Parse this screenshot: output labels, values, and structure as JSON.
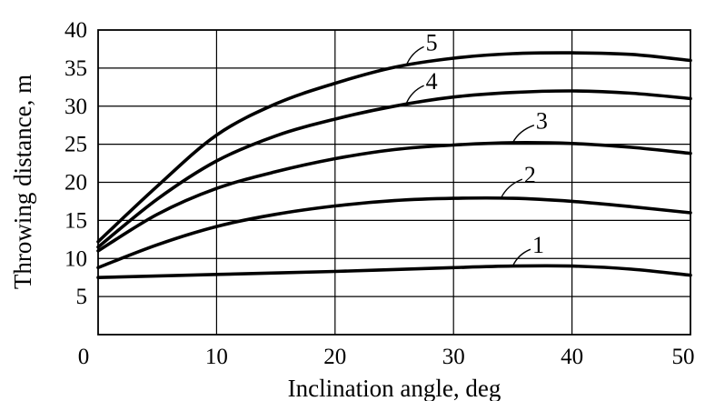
{
  "chart_data": {
    "type": "line",
    "xlabel": "Inclination angle, deg",
    "ylabel": "Throwing distance, m",
    "xlim": [
      0,
      50
    ],
    "ylim": [
      0,
      40
    ],
    "xticks": [
      "0",
      "10",
      "20",
      "30",
      "40",
      "50"
    ],
    "yticks": [
      "5",
      "10",
      "15",
      "20",
      "25",
      "30",
      "35",
      "40"
    ],
    "grid": true,
    "series": [
      {
        "name": "1",
        "x": [
          0,
          10,
          20,
          30,
          35,
          40,
          45,
          50
        ],
        "y": [
          7.5,
          7.9,
          8.3,
          8.8,
          9.0,
          9.0,
          8.6,
          7.8
        ]
      },
      {
        "name": "2",
        "x": [
          0,
          5,
          10,
          15,
          20,
          25,
          30,
          35,
          40,
          45,
          50
        ],
        "y": [
          8.8,
          11.8,
          14.2,
          15.8,
          16.9,
          17.6,
          17.9,
          17.9,
          17.5,
          16.8,
          16.0
        ]
      },
      {
        "name": "3",
        "x": [
          0,
          5,
          10,
          15,
          20,
          25,
          30,
          35,
          40,
          45,
          50
        ],
        "y": [
          11.0,
          15.8,
          19.2,
          21.4,
          23.1,
          24.3,
          24.9,
          25.2,
          25.1,
          24.6,
          23.8
        ]
      },
      {
        "name": "4",
        "x": [
          0,
          5,
          10,
          15,
          20,
          25,
          30,
          35,
          40,
          45,
          50
        ],
        "y": [
          11.5,
          17.8,
          22.8,
          26.1,
          28.3,
          30.0,
          31.2,
          31.8,
          32.0,
          31.7,
          31.0
        ]
      },
      {
        "name": "5",
        "x": [
          0,
          5,
          10,
          15,
          20,
          25,
          30,
          35,
          40,
          45,
          50
        ],
        "y": [
          12.2,
          19.5,
          26.2,
          30.3,
          33.0,
          35.1,
          36.3,
          36.9,
          37.0,
          36.8,
          36.0
        ]
      }
    ],
    "series_labels": [
      {
        "text": "1",
        "x": 35,
        "y": 9.0,
        "dx": 1.5,
        "dy": 2.2
      },
      {
        "text": "2",
        "x": 34,
        "y": 17.9,
        "dx": 1.8,
        "dy": 2.5
      },
      {
        "text": "3",
        "x": 35,
        "y": 25.2,
        "dx": 1.8,
        "dy": 2.3
      },
      {
        "text": "4",
        "x": 26,
        "y": 30.3,
        "dx": 1.5,
        "dy": 2.4
      },
      {
        "text": "5",
        "x": 26,
        "y": 35.3,
        "dx": 1.5,
        "dy": 2.5
      }
    ]
  }
}
